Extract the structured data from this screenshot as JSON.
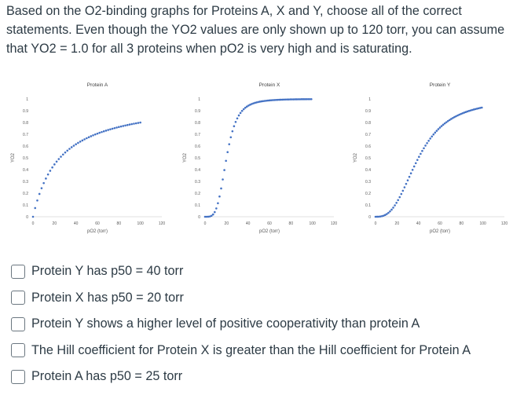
{
  "question": {
    "text": "Based on the O2-binding graphs for Proteins A, X and Y, choose all of the correct statements. Even though the YO2 values are only shown up to 120 torr, you can assume that YO2 = 1.0 for all 3 proteins when pO2 is very high and is saturating."
  },
  "chart_data": [
    {
      "type": "scatter",
      "title": "Protein A",
      "xlabel": "pO2 (torr)",
      "ylabel": "YO2",
      "xlim": [
        0,
        120
      ],
      "ylim": [
        0,
        1
      ],
      "x_ticks": [
        "0",
        "20",
        "40",
        "60",
        "80",
        "100",
        "120"
      ],
      "y_ticks": [
        "0",
        "0.1",
        "0.2",
        "0.3",
        "0.4",
        "0.5",
        "0.6",
        "0.7",
        "0.8",
        "0.9",
        "1"
      ],
      "series": [
        {
          "hill_n": 1,
          "p50": 25,
          "x_start": 0,
          "x_end": 100,
          "step": 2
        }
      ],
      "color": "#4472c4"
    },
    {
      "type": "scatter",
      "title": "Protein X",
      "xlabel": "pO2 (torr)",
      "ylabel": "YO2",
      "xlim": [
        0,
        120
      ],
      "ylim": [
        0,
        1
      ],
      "x_ticks": [
        "0",
        "20",
        "40",
        "60",
        "80",
        "100",
        "120"
      ],
      "y_ticks": [
        "0",
        "0.1",
        "0.2",
        "0.3",
        "0.4",
        "0.5",
        "0.6",
        "0.7",
        "0.8",
        "0.9",
        "1"
      ],
      "series": [
        {
          "hill_n": 4,
          "p50": 20,
          "x_start": 0,
          "x_end": 100,
          "step": 1.5
        }
      ],
      "color": "#4472c4"
    },
    {
      "type": "scatter",
      "title": "Protein Y",
      "xlabel": "pO2 (torr)",
      "ylabel": "YO2",
      "xlim": [
        0,
        120
      ],
      "ylim": [
        0,
        1
      ],
      "x_ticks": [
        "0",
        "20",
        "40",
        "60",
        "80",
        "100",
        "120"
      ],
      "y_ticks": [
        "0",
        "0.1",
        "0.2",
        "0.3",
        "0.4",
        "0.5",
        "0.6",
        "0.7",
        "0.8",
        "0.9",
        "1"
      ],
      "series": [
        {
          "hill_n": 2.8,
          "p50": 40,
          "x_start": 0,
          "x_end": 100,
          "step": 1.5
        }
      ],
      "color": "#4472c4"
    }
  ],
  "options": [
    {
      "label": "Protein Y has p50 = 40 torr",
      "checked": false
    },
    {
      "label": "Protein X has p50 = 20 torr",
      "checked": false
    },
    {
      "label": "Protein Y shows a higher level of positive cooperativity than protein A",
      "checked": false
    },
    {
      "label": "The Hill coefficient for Protein X is greater than the Hill coefficient for Protein A",
      "checked": false
    },
    {
      "label": "Protein A has p50 = 25 torr",
      "checked": false
    }
  ]
}
